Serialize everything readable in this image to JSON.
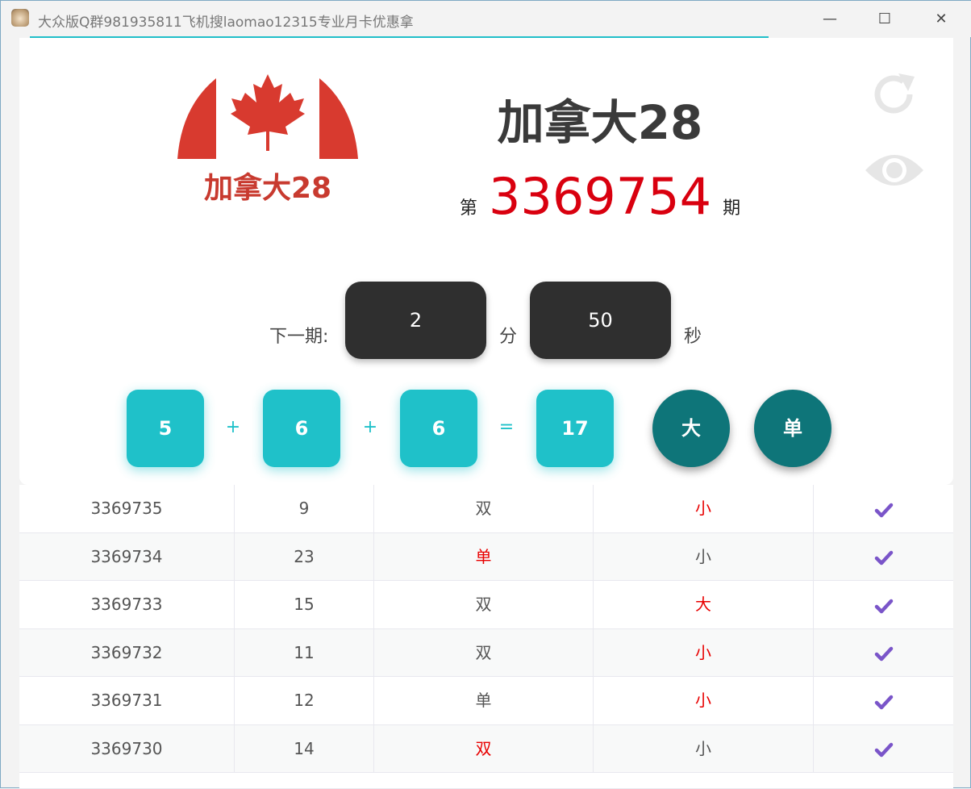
{
  "window": {
    "title": "大众版Q群981935811飞机搜laomao12315专业月卡优惠拿",
    "minimize": "—",
    "maximize": "☐",
    "close": "✕"
  },
  "header": {
    "logo_text": "加拿大28",
    "game_title": "加拿大28",
    "issue_prefix": "第",
    "issue_number": "3369754",
    "issue_suffix": "期",
    "refresh_icon": "refresh-icon",
    "eye_icon": "eye-icon"
  },
  "countdown": {
    "label": "下一期:",
    "minutes": "2",
    "minutes_unit": "分",
    "seconds": "50",
    "seconds_unit": "秒"
  },
  "result": {
    "balls": [
      "5",
      "6",
      "6"
    ],
    "plus": "+",
    "equals": "=",
    "sum": "17",
    "size": "大",
    "parity": "单"
  },
  "colors": {
    "accent": "#1fc1c9",
    "dark_teal": "#0e7579",
    "issue_red": "#d9000f",
    "highlight_red": "#e80000",
    "check": "#7a55c9"
  },
  "history": [
    {
      "issue": "3369735",
      "sum": "9",
      "parity": "双",
      "parity_red": false,
      "size": "小",
      "size_red": true,
      "check": "checkmark-icon"
    },
    {
      "issue": "3369734",
      "sum": "23",
      "parity": "单",
      "parity_red": true,
      "size": "小",
      "size_red": false,
      "check": "checkmark-icon"
    },
    {
      "issue": "3369733",
      "sum": "15",
      "parity": "双",
      "parity_red": false,
      "size": "大",
      "size_red": true,
      "check": "checkmark-icon"
    },
    {
      "issue": "3369732",
      "sum": "11",
      "parity": "双",
      "parity_red": false,
      "size": "小",
      "size_red": true,
      "check": "checkmark-icon"
    },
    {
      "issue": "3369731",
      "sum": "12",
      "parity": "单",
      "parity_red": false,
      "size": "小",
      "size_red": true,
      "check": "checkmark-icon"
    },
    {
      "issue": "3369730",
      "sum": "14",
      "parity": "双",
      "parity_red": true,
      "size": "小",
      "size_red": false,
      "check": "checkmark-icon"
    }
  ]
}
